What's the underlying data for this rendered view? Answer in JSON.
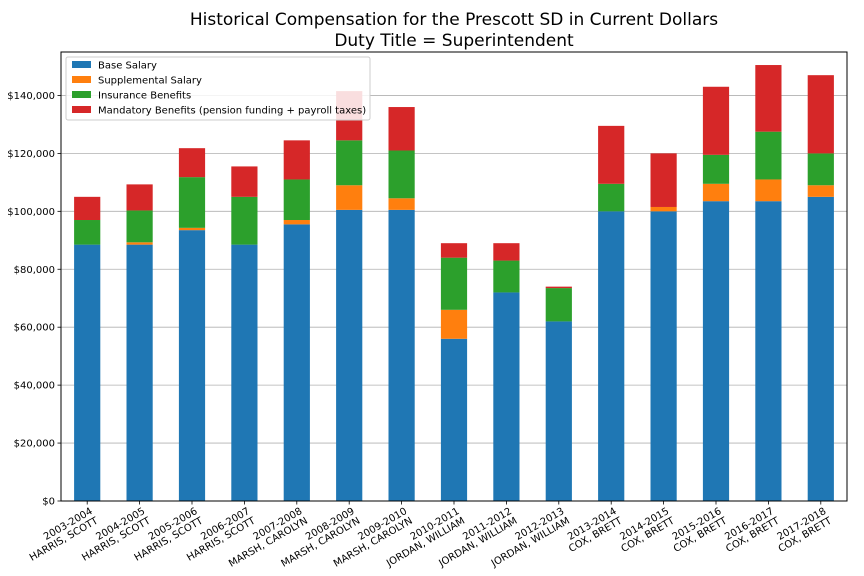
{
  "chart_data": {
    "type": "bar",
    "stacked": true,
    "title": "Historical Compensation for the Prescott SD in Current Dollars",
    "subtitle": "Duty Title = Superintendent",
    "xlabel": "",
    "ylabel": "",
    "ylim": [
      0,
      155000
    ],
    "yticks": [
      0,
      20000,
      40000,
      60000,
      80000,
      100000,
      120000,
      140000
    ],
    "ytick_labels": [
      "$0",
      "$20,000",
      "$40,000",
      "$60,000",
      "$80,000",
      "$100,000",
      "$120,000",
      "$140,000"
    ],
    "grid": "y",
    "legend_position": "top-left",
    "categories": [
      [
        "2003-2004",
        "HARRIS, SCOTT"
      ],
      [
        "2004-2005",
        "HARRIS, SCOTT"
      ],
      [
        "2005-2006",
        "HARRIS, SCOTT"
      ],
      [
        "2006-2007",
        "HARRIS, SCOTT"
      ],
      [
        "2007-2008",
        "MARSH, CAROLYN"
      ],
      [
        "2008-2009",
        "MARSH, CAROLYN"
      ],
      [
        "2009-2010",
        "MARSH, CAROLYN"
      ],
      [
        "2010-2011",
        "JORDAN, WILLIAM"
      ],
      [
        "2011-2012",
        "JORDAN, WILLIAM"
      ],
      [
        "2012-2013",
        "JORDAN, WILLIAM"
      ],
      [
        "2013-2014",
        "COX, BRETT"
      ],
      [
        "2014-2015",
        "COX, BRETT"
      ],
      [
        "2015-2016",
        "COX, BRETT"
      ],
      [
        "2016-2017",
        "COX, BRETT"
      ],
      [
        "2017-2018",
        "COX, BRETT"
      ]
    ],
    "series": [
      {
        "name": "Base Salary",
        "color": "#1f77b4",
        "values": [
          88500,
          88500,
          93500,
          88500,
          95500,
          100500,
          100500,
          56000,
          72000,
          62000,
          100000,
          100000,
          103500,
          103500,
          105000
        ]
      },
      {
        "name": "Supplemental Salary",
        "color": "#ff7f0e",
        "values": [
          0,
          800,
          800,
          0,
          1500,
          8500,
          4000,
          10000,
          0,
          0,
          0,
          1500,
          6000,
          7500,
          4000
        ]
      },
      {
        "name": "Insurance Benefits",
        "color": "#2ca02c",
        "values": [
          8500,
          11000,
          17500,
          16500,
          14000,
          15500,
          16500,
          18000,
          11000,
          11500,
          9500,
          0,
          10000,
          16500,
          11000
        ]
      },
      {
        "name": "Mandatory Benefits (pension funding + payroll taxes)",
        "color": "#d62728",
        "values": [
          8000,
          9000,
          10000,
          10500,
          13500,
          17000,
          15000,
          5000,
          6000,
          500,
          20000,
          18500,
          23500,
          23000,
          27000
        ]
      }
    ]
  }
}
